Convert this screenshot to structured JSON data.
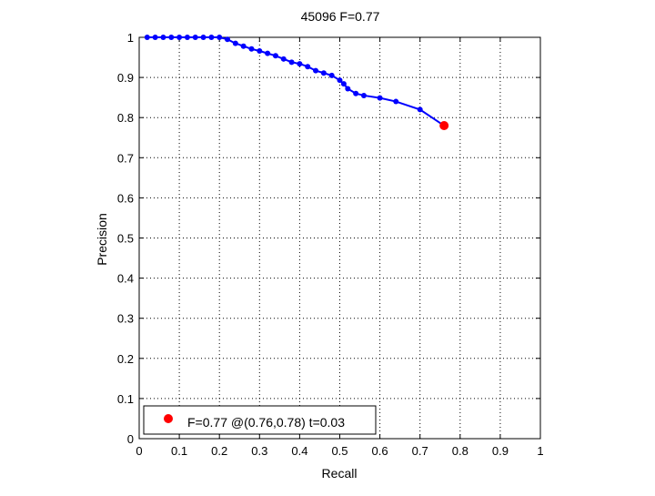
{
  "chart_data": {
    "type": "line",
    "title": "45096 F=0.77",
    "xlabel": "Recall",
    "ylabel": "Precision",
    "xlim": [
      0,
      1
    ],
    "ylim": [
      0,
      1
    ],
    "xticks": [
      "0",
      "0.1",
      "0.2",
      "0.3",
      "0.4",
      "0.5",
      "0.6",
      "0.7",
      "0.8",
      "0.9",
      "1"
    ],
    "yticks": [
      "0",
      "0.1",
      "0.2",
      "0.3",
      "0.4",
      "0.5",
      "0.6",
      "0.7",
      "0.8",
      "0.9",
      "1"
    ],
    "grid": true,
    "series": [
      {
        "color": "#0000ff",
        "x": [
          0.02,
          0.04,
          0.06,
          0.08,
          0.1,
          0.12,
          0.14,
          0.16,
          0.18,
          0.2,
          0.22,
          0.24,
          0.26,
          0.28,
          0.3,
          0.32,
          0.34,
          0.36,
          0.38,
          0.4,
          0.42,
          0.44,
          0.46,
          0.48,
          0.5,
          0.51,
          0.52,
          0.54,
          0.56,
          0.6,
          0.64,
          0.7,
          0.76
        ],
        "y": [
          1.0,
          1.0,
          1.0,
          1.0,
          1.0,
          1.0,
          1.0,
          1.0,
          1.0,
          1.0,
          0.995,
          0.985,
          0.978,
          0.971,
          0.966,
          0.96,
          0.954,
          0.946,
          0.938,
          0.934,
          0.927,
          0.917,
          0.911,
          0.905,
          0.893,
          0.884,
          0.872,
          0.86,
          0.855,
          0.849,
          0.84,
          0.82,
          0.78
        ]
      }
    ],
    "highlight_point": {
      "x": 0.76,
      "y": 0.78,
      "color": "#ff0000"
    },
    "legend": {
      "text": "F=0.77 @(0.76,0.78) t=0.03",
      "position": "bottom-left"
    }
  }
}
